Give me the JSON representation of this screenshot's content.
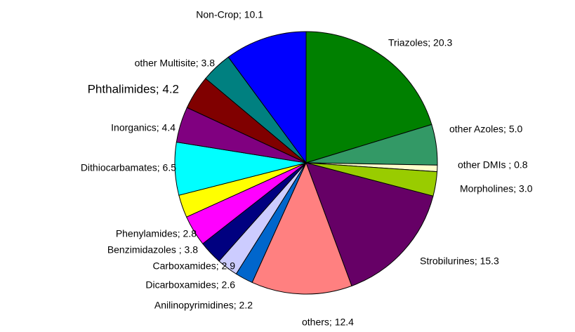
{
  "chart_data": {
    "type": "pie",
    "values": [
      20.3,
      5.0,
      0.8,
      3.0,
      15.3,
      12.4,
      2.2,
      2.6,
      2.9,
      3.8,
      2.8,
      6.5,
      4.4,
      4.2,
      3.8,
      10.1
    ],
    "value_labels": [
      "Triazoles; 20.3",
      "other Azoles; 5.0",
      "other DMIs ; 0.8",
      "Morpholines; 3.0",
      "Strobilurines; 15.3",
      "others; 12.4",
      "Anilinopyrimidines; 2.2",
      "Dicarboxamides; 2.6",
      "Carboxamides; 2.9",
      "Benzimidazoles ; 3.8",
      "Phenylamides; 2.8",
      "Dithiocarbamates; 6.5",
      "Inorganics; 4.4",
      "Phthalimides; 4.2",
      "other Multisite; 3.8",
      "Non-Crop; 10.1"
    ],
    "colors": [
      "#008000",
      "#339966",
      "#ffffcc",
      "#99cc00",
      "#660066",
      "#ff8080",
      "#0066cc",
      "#ccccff",
      "#000080",
      "#ff00ff",
      "#ffff00",
      "#00ffff",
      "#800080",
      "#800000",
      "#008080",
      "#0000ff"
    ]
  }
}
